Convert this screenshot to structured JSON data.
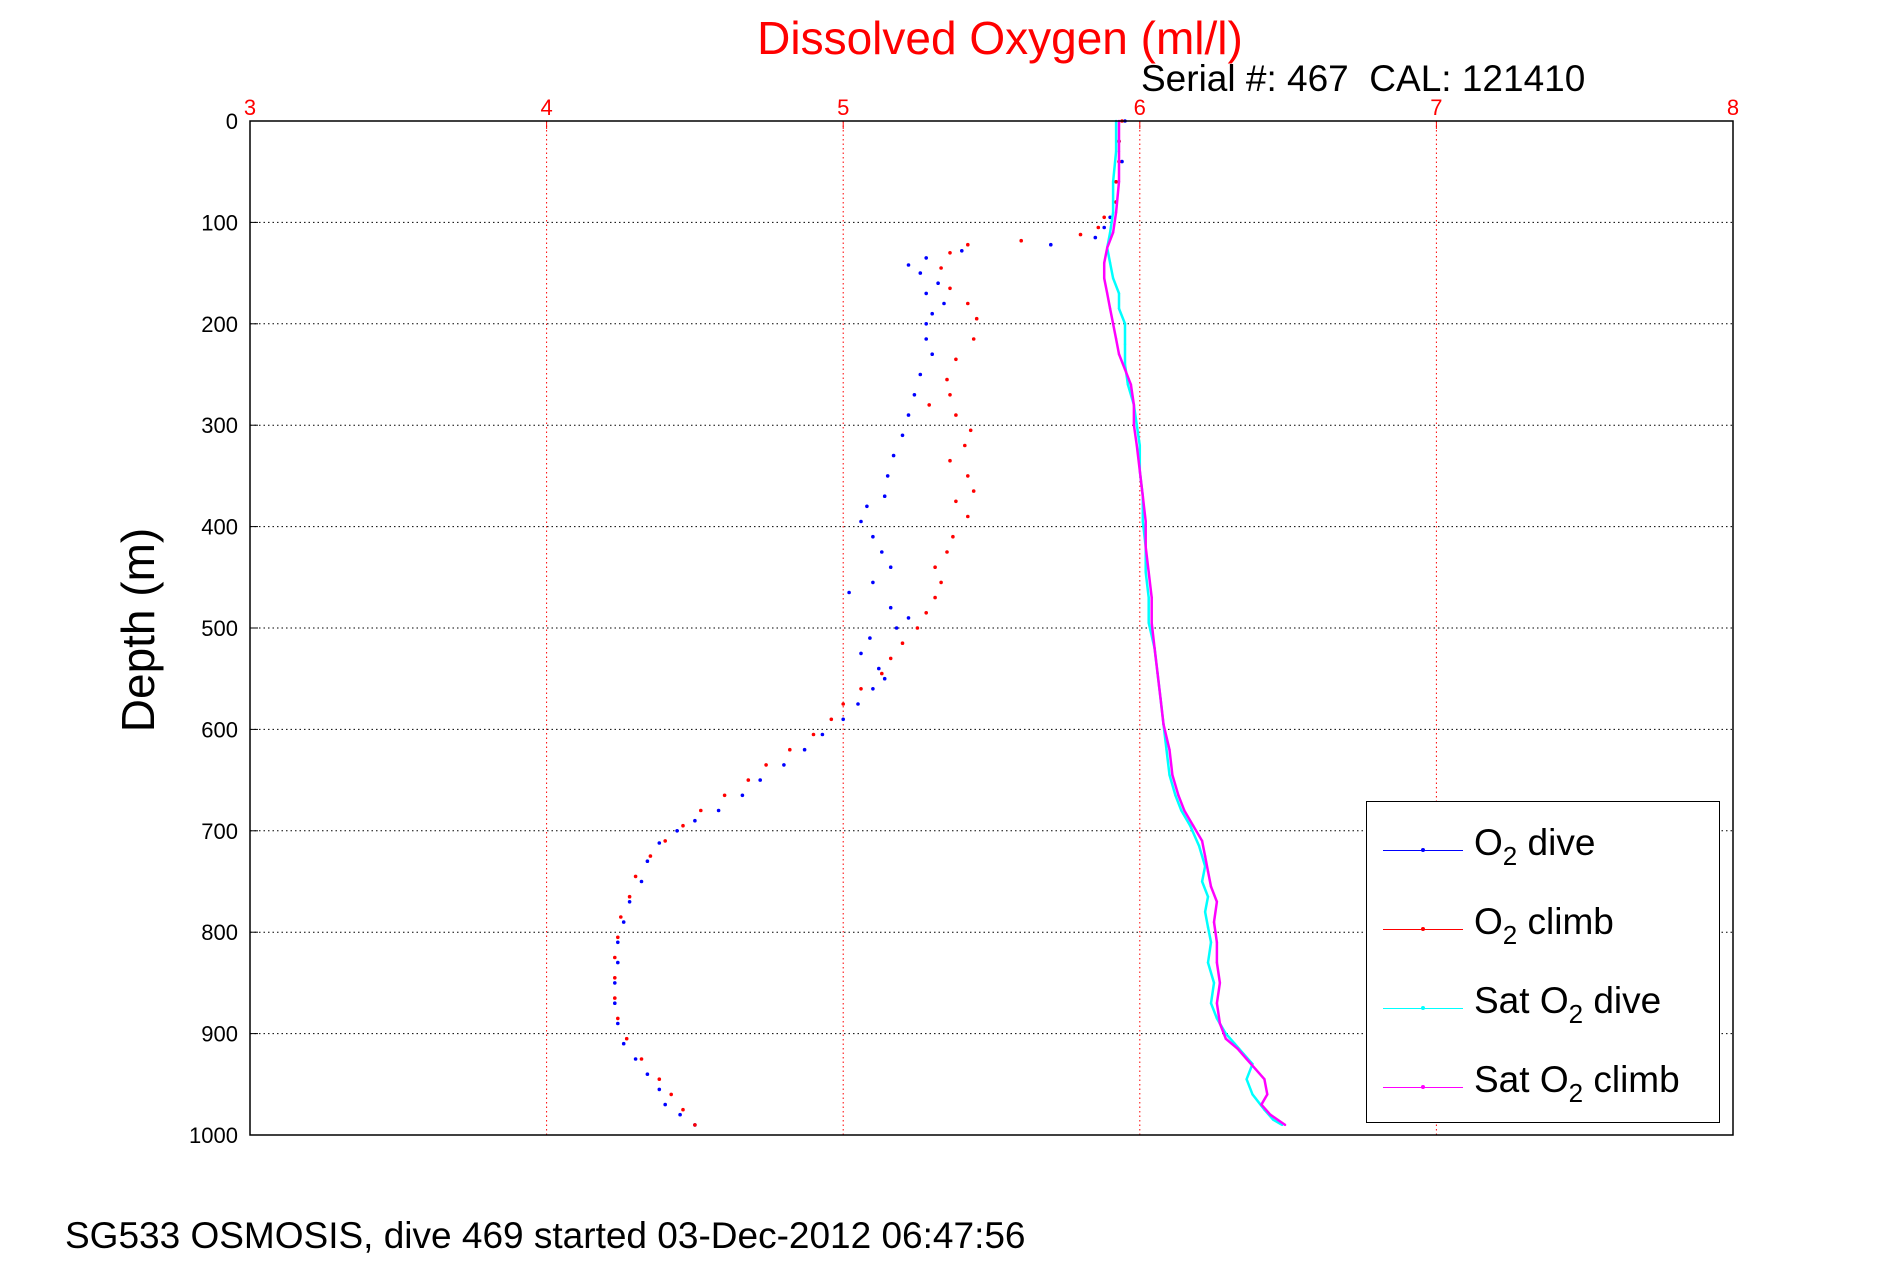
{
  "chart_data": {
    "type": "scatter",
    "title": "Dissolved Oxygen (ml/l)",
    "subtitle": "Serial #: 467  CAL: 121410",
    "ylabel": "Depth (m)",
    "footer": "SG533 OSMOSIS, dive 469 started 03-Dec-2012 06:47:56",
    "xlim": [
      3,
      8
    ],
    "ylim": [
      0,
      1000
    ],
    "y_reversed": true,
    "x_axis_position": "top",
    "grid": true,
    "x_ticks": [
      "3",
      "4",
      "5",
      "6",
      "7",
      "8"
    ],
    "y_ticks": [
      "0",
      "100",
      "200",
      "300",
      "400",
      "500",
      "600",
      "700",
      "800",
      "900",
      "1000"
    ],
    "legend_position": "lower-right",
    "colors": {
      "title": "#ff0000",
      "x_ticks": "#ff0000",
      "grid": "#000000",
      "x_grid": "#ff0000"
    },
    "series": [
      {
        "name_main": "O",
        "name_sub": "2",
        "name_rest": " dive",
        "color": "#0000ff",
        "style": "dots",
        "points": [
          [
            5.95,
            0
          ],
          [
            5.93,
            20
          ],
          [
            5.94,
            40
          ],
          [
            5.92,
            60
          ],
          [
            5.92,
            80
          ],
          [
            5.9,
            95
          ],
          [
            5.88,
            105
          ],
          [
            5.85,
            115
          ],
          [
            5.7,
            122
          ],
          [
            5.4,
            128
          ],
          [
            5.28,
            135
          ],
          [
            5.22,
            142
          ],
          [
            5.26,
            150
          ],
          [
            5.32,
            160
          ],
          [
            5.28,
            170
          ],
          [
            5.34,
            180
          ],
          [
            5.3,
            190
          ],
          [
            5.28,
            200
          ],
          [
            5.28,
            215
          ],
          [
            5.3,
            230
          ],
          [
            5.26,
            250
          ],
          [
            5.24,
            270
          ],
          [
            5.22,
            290
          ],
          [
            5.2,
            310
          ],
          [
            5.17,
            330
          ],
          [
            5.15,
            350
          ],
          [
            5.14,
            370
          ],
          [
            5.08,
            380
          ],
          [
            5.06,
            395
          ],
          [
            5.1,
            410
          ],
          [
            5.13,
            425
          ],
          [
            5.16,
            440
          ],
          [
            5.1,
            455
          ],
          [
            5.02,
            465
          ],
          [
            5.16,
            480
          ],
          [
            5.22,
            490
          ],
          [
            5.18,
            500
          ],
          [
            5.09,
            510
          ],
          [
            5.06,
            525
          ],
          [
            5.12,
            540
          ],
          [
            5.14,
            550
          ],
          [
            5.1,
            560
          ],
          [
            5.05,
            575
          ],
          [
            5.0,
            590
          ],
          [
            4.93,
            605
          ],
          [
            4.87,
            620
          ],
          [
            4.8,
            635
          ],
          [
            4.72,
            650
          ],
          [
            4.66,
            665
          ],
          [
            4.58,
            680
          ],
          [
            4.5,
            690
          ],
          [
            4.44,
            700
          ],
          [
            4.38,
            712
          ],
          [
            4.34,
            730
          ],
          [
            4.32,
            750
          ],
          [
            4.28,
            770
          ],
          [
            4.26,
            790
          ],
          [
            4.24,
            810
          ],
          [
            4.24,
            830
          ],
          [
            4.23,
            850
          ],
          [
            4.23,
            870
          ],
          [
            4.24,
            890
          ],
          [
            4.26,
            910
          ],
          [
            4.3,
            925
          ],
          [
            4.34,
            940
          ],
          [
            4.38,
            955
          ],
          [
            4.4,
            970
          ],
          [
            4.45,
            980
          ],
          [
            4.5,
            990
          ]
        ]
      },
      {
        "name_main": "O",
        "name_sub": "2",
        "name_rest": " climb",
        "color": "#ff0000",
        "style": "dots",
        "points": [
          [
            5.94,
            0
          ],
          [
            5.93,
            20
          ],
          [
            5.93,
            40
          ],
          [
            5.92,
            60
          ],
          [
            5.92,
            80
          ],
          [
            5.88,
            95
          ],
          [
            5.86,
            105
          ],
          [
            5.8,
            112
          ],
          [
            5.6,
            118
          ],
          [
            5.42,
            122
          ],
          [
            5.36,
            130
          ],
          [
            5.33,
            145
          ],
          [
            5.36,
            165
          ],
          [
            5.42,
            180
          ],
          [
            5.45,
            195
          ],
          [
            5.44,
            215
          ],
          [
            5.38,
            235
          ],
          [
            5.35,
            255
          ],
          [
            5.36,
            270
          ],
          [
            5.29,
            280
          ],
          [
            5.38,
            290
          ],
          [
            5.43,
            305
          ],
          [
            5.41,
            320
          ],
          [
            5.36,
            335
          ],
          [
            5.42,
            350
          ],
          [
            5.44,
            365
          ],
          [
            5.38,
            375
          ],
          [
            5.42,
            390
          ],
          [
            5.37,
            410
          ],
          [
            5.35,
            425
          ],
          [
            5.31,
            440
          ],
          [
            5.33,
            455
          ],
          [
            5.31,
            470
          ],
          [
            5.28,
            485
          ],
          [
            5.25,
            500
          ],
          [
            5.2,
            515
          ],
          [
            5.16,
            530
          ],
          [
            5.13,
            545
          ],
          [
            5.06,
            560
          ],
          [
            5.0,
            575
          ],
          [
            4.96,
            590
          ],
          [
            4.9,
            605
          ],
          [
            4.82,
            620
          ],
          [
            4.74,
            635
          ],
          [
            4.68,
            650
          ],
          [
            4.6,
            665
          ],
          [
            4.52,
            680
          ],
          [
            4.46,
            695
          ],
          [
            4.4,
            710
          ],
          [
            4.35,
            725
          ],
          [
            4.3,
            745
          ],
          [
            4.28,
            765
          ],
          [
            4.25,
            785
          ],
          [
            4.24,
            805
          ],
          [
            4.23,
            825
          ],
          [
            4.23,
            845
          ],
          [
            4.23,
            865
          ],
          [
            4.24,
            885
          ],
          [
            4.27,
            905
          ],
          [
            4.32,
            925
          ],
          [
            4.38,
            945
          ],
          [
            4.42,
            960
          ],
          [
            4.46,
            975
          ],
          [
            4.5,
            990
          ]
        ]
      },
      {
        "name_main": "Sat O",
        "name_sub": "2",
        "name_rest": " dive",
        "color": "#00ffff",
        "style": "line",
        "points": [
          [
            5.92,
            0
          ],
          [
            5.92,
            30
          ],
          [
            5.91,
            60
          ],
          [
            5.91,
            90
          ],
          [
            5.9,
            110
          ],
          [
            5.89,
            125
          ],
          [
            5.9,
            140
          ],
          [
            5.91,
            155
          ],
          [
            5.93,
            170
          ],
          [
            5.93,
            185
          ],
          [
            5.95,
            200
          ],
          [
            5.95,
            220
          ],
          [
            5.95,
            240
          ],
          [
            5.96,
            260
          ],
          [
            5.98,
            280
          ],
          [
            5.99,
            300
          ],
          [
            6.0,
            320
          ],
          [
            6.0,
            345
          ],
          [
            6.01,
            370
          ],
          [
            6.01,
            395
          ],
          [
            6.02,
            420
          ],
          [
            6.02,
            445
          ],
          [
            6.03,
            470
          ],
          [
            6.03,
            495
          ],
          [
            6.05,
            520
          ],
          [
            6.06,
            545
          ],
          [
            6.07,
            570
          ],
          [
            6.08,
            595
          ],
          [
            6.09,
            620
          ],
          [
            6.1,
            645
          ],
          [
            6.12,
            665
          ],
          [
            6.14,
            680
          ],
          [
            6.17,
            695
          ],
          [
            6.2,
            715
          ],
          [
            6.22,
            735
          ],
          [
            6.21,
            750
          ],
          [
            6.23,
            765
          ],
          [
            6.22,
            780
          ],
          [
            6.23,
            795
          ],
          [
            6.24,
            810
          ],
          [
            6.23,
            830
          ],
          [
            6.25,
            850
          ],
          [
            6.24,
            870
          ],
          [
            6.26,
            885
          ],
          [
            6.29,
            900
          ],
          [
            6.32,
            910
          ],
          [
            6.35,
            920
          ],
          [
            6.38,
            930
          ],
          [
            6.36,
            945
          ],
          [
            6.38,
            960
          ],
          [
            6.42,
            975
          ],
          [
            6.45,
            985
          ],
          [
            6.48,
            990
          ]
        ]
      },
      {
        "name_main": "Sat O",
        "name_sub": "2",
        "name_rest": " climb",
        "color": "#ff00ff",
        "style": "line",
        "points": [
          [
            5.93,
            0
          ],
          [
            5.93,
            30
          ],
          [
            5.93,
            60
          ],
          [
            5.92,
            90
          ],
          [
            5.91,
            110
          ],
          [
            5.89,
            125
          ],
          [
            5.88,
            140
          ],
          [
            5.88,
            155
          ],
          [
            5.89,
            170
          ],
          [
            5.9,
            185
          ],
          [
            5.91,
            200
          ],
          [
            5.92,
            215
          ],
          [
            5.93,
            230
          ],
          [
            5.95,
            245
          ],
          [
            5.97,
            260
          ],
          [
            5.98,
            280
          ],
          [
            5.98,
            300
          ],
          [
            5.99,
            320
          ],
          [
            6.0,
            345
          ],
          [
            6.01,
            370
          ],
          [
            6.02,
            395
          ],
          [
            6.02,
            420
          ],
          [
            6.03,
            445
          ],
          [
            6.04,
            470
          ],
          [
            6.04,
            495
          ],
          [
            6.05,
            520
          ],
          [
            6.06,
            545
          ],
          [
            6.07,
            570
          ],
          [
            6.08,
            595
          ],
          [
            6.1,
            620
          ],
          [
            6.11,
            645
          ],
          [
            6.13,
            665
          ],
          [
            6.15,
            680
          ],
          [
            6.18,
            695
          ],
          [
            6.21,
            710
          ],
          [
            6.22,
            725
          ],
          [
            6.23,
            740
          ],
          [
            6.24,
            755
          ],
          [
            6.26,
            770
          ],
          [
            6.25,
            790
          ],
          [
            6.26,
            810
          ],
          [
            6.26,
            830
          ],
          [
            6.27,
            850
          ],
          [
            6.26,
            870
          ],
          [
            6.27,
            890
          ],
          [
            6.29,
            905
          ],
          [
            6.33,
            915
          ],
          [
            6.36,
            925
          ],
          [
            6.39,
            935
          ],
          [
            6.42,
            945
          ],
          [
            6.43,
            960
          ],
          [
            6.41,
            970
          ],
          [
            6.44,
            980
          ],
          [
            6.49,
            990
          ]
        ]
      }
    ]
  }
}
